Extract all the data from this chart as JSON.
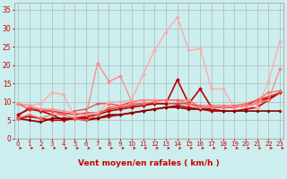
{
  "title": "",
  "xlabel": "Vent moyen/en rafales ( km/h )",
  "xlabel_color": "#cc0000",
  "background_color": "#cceeee",
  "grid_color": "#aaaaaa",
  "x_ticks": [
    0,
    1,
    2,
    3,
    4,
    5,
    6,
    7,
    8,
    9,
    10,
    11,
    12,
    13,
    14,
    15,
    16,
    17,
    18,
    19,
    20,
    21,
    22,
    23
  ],
  "ylim": [
    0,
    37
  ],
  "xlim": [
    -0.3,
    23.3
  ],
  "yticks": [
    0,
    5,
    10,
    15,
    20,
    25,
    30,
    35
  ],
  "lines": [
    {
      "x": [
        0,
        1,
        2,
        3,
        4,
        5,
        6,
        7,
        8,
        9,
        10,
        11,
        12,
        13,
        14,
        15,
        16,
        17,
        18,
        19,
        20,
        21,
        22,
        23
      ],
      "y": [
        5.5,
        6.0,
        5.5,
        5.0,
        5.0,
        5.5,
        5.5,
        5.5,
        6.0,
        6.5,
        7.0,
        7.5,
        8.0,
        8.5,
        9.0,
        8.5,
        8.0,
        7.5,
        7.5,
        7.5,
        8.0,
        8.5,
        10.5,
        12.5
      ],
      "color": "#cc0000",
      "lw": 1.2,
      "marker": "D",
      "ms": 1.8
    },
    {
      "x": [
        0,
        1,
        2,
        3,
        4,
        5,
        6,
        7,
        8,
        9,
        10,
        11,
        12,
        13,
        14,
        15,
        16,
        17,
        18,
        19,
        20,
        21,
        22,
        23
      ],
      "y": [
        6.0,
        8.5,
        7.5,
        7.5,
        7.0,
        6.5,
        7.0,
        7.0,
        8.0,
        8.5,
        9.0,
        9.5,
        9.5,
        9.5,
        9.5,
        9.5,
        8.5,
        8.5,
        8.5,
        8.5,
        9.0,
        9.5,
        11.0,
        12.5
      ],
      "color": "#dd3333",
      "lw": 1.0,
      "marker": "+",
      "ms": 2.5
    },
    {
      "x": [
        0,
        1,
        2,
        3,
        4,
        5,
        6,
        7,
        8,
        9,
        10,
        11,
        12,
        13,
        14,
        15,
        16,
        17,
        18,
        19,
        20,
        21,
        22,
        23
      ],
      "y": [
        6.5,
        8.0,
        7.5,
        6.5,
        5.0,
        5.5,
        6.0,
        6.5,
        7.5,
        8.0,
        8.5,
        9.0,
        9.5,
        9.5,
        16.0,
        9.5,
        13.5,
        8.5,
        8.5,
        8.5,
        9.0,
        10.5,
        11.0,
        12.5
      ],
      "color": "#bb0000",
      "lw": 1.2,
      "marker": "D",
      "ms": 1.8
    },
    {
      "x": [
        0,
        1,
        2,
        3,
        4,
        5,
        6,
        7,
        8,
        9,
        10,
        11,
        12,
        13,
        14,
        15,
        16,
        17,
        18,
        19,
        20,
        21,
        22,
        23
      ],
      "y": [
        9.5,
        8.0,
        8.0,
        7.5,
        6.5,
        7.5,
        8.0,
        9.5,
        9.5,
        9.0,
        10.0,
        10.5,
        10.5,
        10.5,
        10.5,
        10.5,
        8.5,
        8.5,
        8.5,
        8.5,
        9.0,
        10.5,
        11.5,
        12.5
      ],
      "color": "#ee4444",
      "lw": 0.9,
      "marker": "x",
      "ms": 2.0
    },
    {
      "x": [
        0,
        1,
        2,
        3,
        4,
        5,
        6,
        7,
        8,
        9,
        10,
        11,
        12,
        13,
        14,
        15,
        16,
        17,
        18,
        19,
        20,
        21,
        22,
        23
      ],
      "y": [
        5.5,
        5.0,
        4.5,
        5.5,
        5.5,
        5.5,
        5.0,
        5.5,
        6.5,
        6.5,
        7.0,
        7.5,
        8.0,
        8.5,
        8.5,
        8.0,
        8.0,
        8.0,
        7.5,
        7.5,
        7.5,
        7.5,
        7.5,
        7.5
      ],
      "color": "#880000",
      "lw": 1.2,
      "marker": "D",
      "ms": 1.5
    },
    {
      "x": [
        0,
        1,
        2,
        3,
        4,
        5,
        6,
        7,
        8,
        9,
        10,
        11,
        12,
        13,
        14,
        15,
        16,
        17,
        18,
        19,
        20,
        21,
        22,
        23
      ],
      "y": [
        9.5,
        9.0,
        9.5,
        12.5,
        12.0,
        6.0,
        6.5,
        7.0,
        10.0,
        10.0,
        10.5,
        17.5,
        24.0,
        29.0,
        33.0,
        24.0,
        24.5,
        13.5,
        13.5,
        8.5,
        9.0,
        8.5,
        15.5,
        26.5
      ],
      "color": "#ffaaaa",
      "lw": 1.0,
      "marker": "D",
      "ms": 1.8
    },
    {
      "x": [
        0,
        1,
        2,
        3,
        4,
        5,
        6,
        7,
        8,
        9,
        10,
        11,
        12,
        13,
        14,
        15,
        16,
        17,
        18,
        19,
        20,
        21,
        22,
        23
      ],
      "y": [
        9.5,
        9.0,
        8.0,
        8.0,
        7.5,
        7.0,
        6.5,
        20.5,
        15.5,
        17.0,
        10.0,
        10.5,
        10.5,
        10.5,
        10.5,
        10.5,
        8.5,
        8.5,
        8.5,
        8.5,
        9.0,
        9.5,
        10.5,
        19.0
      ],
      "color": "#ff8888",
      "lw": 0.9,
      "marker": "D",
      "ms": 1.8
    },
    {
      "x": [
        0,
        1,
        2,
        3,
        4,
        5,
        6,
        7,
        8,
        9,
        10,
        11,
        12,
        13,
        14,
        15,
        16,
        17,
        18,
        19,
        20,
        21,
        22,
        23
      ],
      "y": [
        5.5,
        6.5,
        5.5,
        6.5,
        6.5,
        5.5,
        5.0,
        6.5,
        8.5,
        9.0,
        9.5,
        9.5,
        10.0,
        10.5,
        10.5,
        9.5,
        9.0,
        9.0,
        9.0,
        9.0,
        9.5,
        10.5,
        12.5,
        13.0
      ],
      "color": "#ff6666",
      "lw": 0.9,
      "marker": "D",
      "ms": 1.5
    }
  ],
  "tick_color": "#cc0000",
  "tick_fontsize": 5.0,
  "xlabel_fontsize": 6.5,
  "ytick_fontsize": 5.5,
  "arrow_color": "#cc0000"
}
